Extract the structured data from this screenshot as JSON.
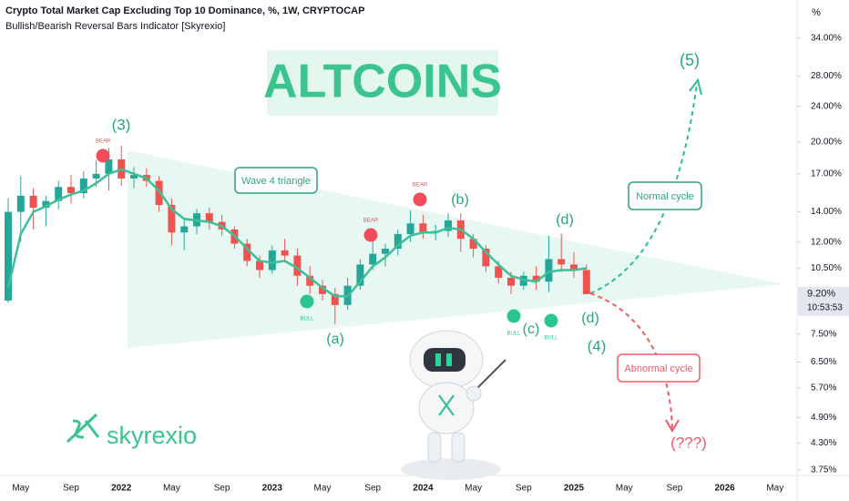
{
  "chart_data": {
    "type": "candlestick",
    "title": "Crypto Total Market Cap Excluding Top 10 Dominance, %, 1W, CRYPTOCAP",
    "subtitle": "Bullish/Bearish Reversal Bars Indicator [Skyrexio]",
    "y_unit_label": "%",
    "log_scale": true,
    "grid": false,
    "up_color": "#26a69a",
    "down_color": "#ef5350",
    "ma_color": "#3dbf98",
    "categories": [
      null,
      "May",
      null,
      null,
      null,
      "Sep",
      null,
      null,
      null,
      "2022",
      null,
      null,
      null,
      "May",
      null,
      null,
      null,
      "Sep",
      null,
      null,
      null,
      "2023",
      null,
      null,
      null,
      "May",
      null,
      null,
      null,
      "Sep",
      null,
      null,
      null,
      "2024",
      null,
      null,
      null,
      "May",
      null,
      null,
      null,
      "Sep",
      null,
      null,
      null,
      "2025",
      null,
      null,
      null,
      "May",
      null,
      null,
      null,
      "Sep",
      null,
      null,
      null,
      "2026",
      null,
      null,
      null,
      "May"
    ],
    "open": [
      8.9,
      14.0,
      15.2,
      14.3,
      14.8,
      15.9,
      15.4,
      16.6,
      17.0,
      18.3,
      16.6,
      16.9,
      16.4,
      14.5,
      12.6,
      13.0,
      13.9,
      13.3,
      12.8,
      11.9,
      10.9,
      10.4,
      11.5,
      11.2,
      10.1,
      9.6,
      9.2,
      8.7,
      9.6,
      10.7,
      11.3,
      11.6,
      12.5,
      13.2,
      12.6,
      12.7,
      13.4,
      12.2,
      11.6,
      10.6,
      10.0,
      9.6,
      10.1,
      9.8,
      11.0,
      10.7,
      10.4,
      null,
      null,
      null,
      null,
      null,
      null,
      null,
      null,
      null,
      null,
      null,
      null,
      null,
      null,
      null
    ],
    "high": [
      15.0,
      16.8,
      15.8,
      15.2,
      16.4,
      16.9,
      17.2,
      18.2,
      19.4,
      19.6,
      17.6,
      17.5,
      16.8,
      15.0,
      13.4,
      14.2,
      14.3,
      13.8,
      13.0,
      12.2,
      11.2,
      11.8,
      12.2,
      11.6,
      10.6,
      9.9,
      9.5,
      10.0,
      11.0,
      12.2,
      11.9,
      12.8,
      14.1,
      13.8,
      13.1,
      13.9,
      13.9,
      12.5,
      11.8,
      10.9,
      10.3,
      10.3,
      10.6,
      12.4,
      12.5,
      11.4,
      10.7,
      null,
      null,
      null,
      null,
      null,
      null,
      null,
      null,
      null,
      null,
      null,
      null,
      null,
      null,
      null
    ],
    "low": [
      8.8,
      12.0,
      12.8,
      13.0,
      14.2,
      14.6,
      15.0,
      15.9,
      15.6,
      16.0,
      15.8,
      15.9,
      14.0,
      11.8,
      11.5,
      12.5,
      12.8,
      12.4,
      11.6,
      10.6,
      10.0,
      10.2,
      10.8,
      9.6,
      9.2,
      8.9,
      7.9,
      8.5,
      9.4,
      10.4,
      10.6,
      11.2,
      12.0,
      12.2,
      12.1,
      12.3,
      11.4,
      11.1,
      10.3,
      9.7,
      9.2,
      9.4,
      9.4,
      9.3,
      10.3,
      10.0,
      9.2,
      null,
      null,
      null,
      null,
      null,
      null,
      null,
      null,
      null,
      null,
      null,
      null,
      null,
      null,
      null
    ],
    "close": [
      14.0,
      15.2,
      14.3,
      14.8,
      15.9,
      15.4,
      16.6,
      17.0,
      18.3,
      16.6,
      16.9,
      16.4,
      14.5,
      12.6,
      13.0,
      13.9,
      13.3,
      12.8,
      11.9,
      10.9,
      10.4,
      11.5,
      11.2,
      10.1,
      9.6,
      9.2,
      8.7,
      9.6,
      10.7,
      11.3,
      11.6,
      12.5,
      13.2,
      12.6,
      12.7,
      13.4,
      12.2,
      11.6,
      10.6,
      10.0,
      9.6,
      10.1,
      9.8,
      11.0,
      10.7,
      10.4,
      9.2,
      null,
      null,
      null,
      null,
      null,
      null,
      null,
      null,
      null,
      null,
      null,
      null,
      null,
      null,
      null
    ],
    "ma_values": [
      9.5,
      12.5,
      14.0,
      14.4,
      14.9,
      15.3,
      15.6,
      16.2,
      17.0,
      17.4,
      17.0,
      16.6,
      15.6,
      14.2,
      13.5,
      13.4,
      13.3,
      13.0,
      12.4,
      11.6,
      10.9,
      10.8,
      10.9,
      10.5,
      10.0,
      9.5,
      9.1,
      9.1,
      9.8,
      10.6,
      11.1,
      11.8,
      12.4,
      12.6,
      12.6,
      12.9,
      12.8,
      12.2,
      11.4,
      10.7,
      10.1,
      9.9,
      9.8,
      10.3,
      10.4,
      10.4,
      10.5,
      null,
      null,
      null,
      null,
      null,
      null,
      null,
      null,
      null,
      null,
      null,
      null,
      null,
      null,
      null
    ],
    "ylim": [
      3.51,
      41.3
    ],
    "yticks": [
      {
        "value": 34,
        "label": "34.00%"
      },
      {
        "value": 28,
        "label": "28.00%"
      },
      {
        "value": 24,
        "label": "24.00%"
      },
      {
        "value": 20,
        "label": "20.00%"
      },
      {
        "value": 17,
        "label": "17.00%"
      },
      {
        "value": 14,
        "label": "14.00%"
      },
      {
        "value": 12,
        "label": "12.00%"
      },
      {
        "value": 10.5,
        "label": "10.50%"
      },
      {
        "value": 7.5,
        "label": "7.50%"
      },
      {
        "value": 6.5,
        "label": "6.50%"
      },
      {
        "value": 5.7,
        "label": "5.70%"
      },
      {
        "value": 4.9,
        "label": "4.90%"
      },
      {
        "value": 4.3,
        "label": "4.30%"
      },
      {
        "value": 3.75,
        "label": "3.75%"
      }
    ],
    "price_tag": {
      "value": 9.2,
      "label": "9.20%"
    },
    "countdown": "10:53:53",
    "headline": "ALTCOINS",
    "annotations": [
      "(3)",
      "(a)",
      "(b)",
      "(c)",
      "(d)",
      "(d)",
      "(4)",
      "(5)",
      "(???)"
    ],
    "annotation_colors": [
      "#2aa57e",
      "#2aa57e",
      "#2aa57e",
      "#2aa57e",
      "#2aa57e",
      "#2aa57e",
      "#2aa57e",
      "#2aa57e",
      "#ef5a6a"
    ],
    "boxes": [
      "Wave 4 triangle",
      "Normal cycle",
      "Abnormal cycle"
    ],
    "box_colors": [
      "#2aa57e",
      "#2aa57e",
      "#ef5a6a"
    ],
    "signals": [
      "BEAR",
      "BEAR",
      "BEAR",
      "BULL",
      "BULL",
      "BULL"
    ],
    "signal_colors": [
      "#f24b5a",
      "#f24b5a",
      "#f24b5a",
      "#2bc58e",
      "#2bc58e",
      "#2bc58e"
    ],
    "logo_text": "skyrexio"
  }
}
